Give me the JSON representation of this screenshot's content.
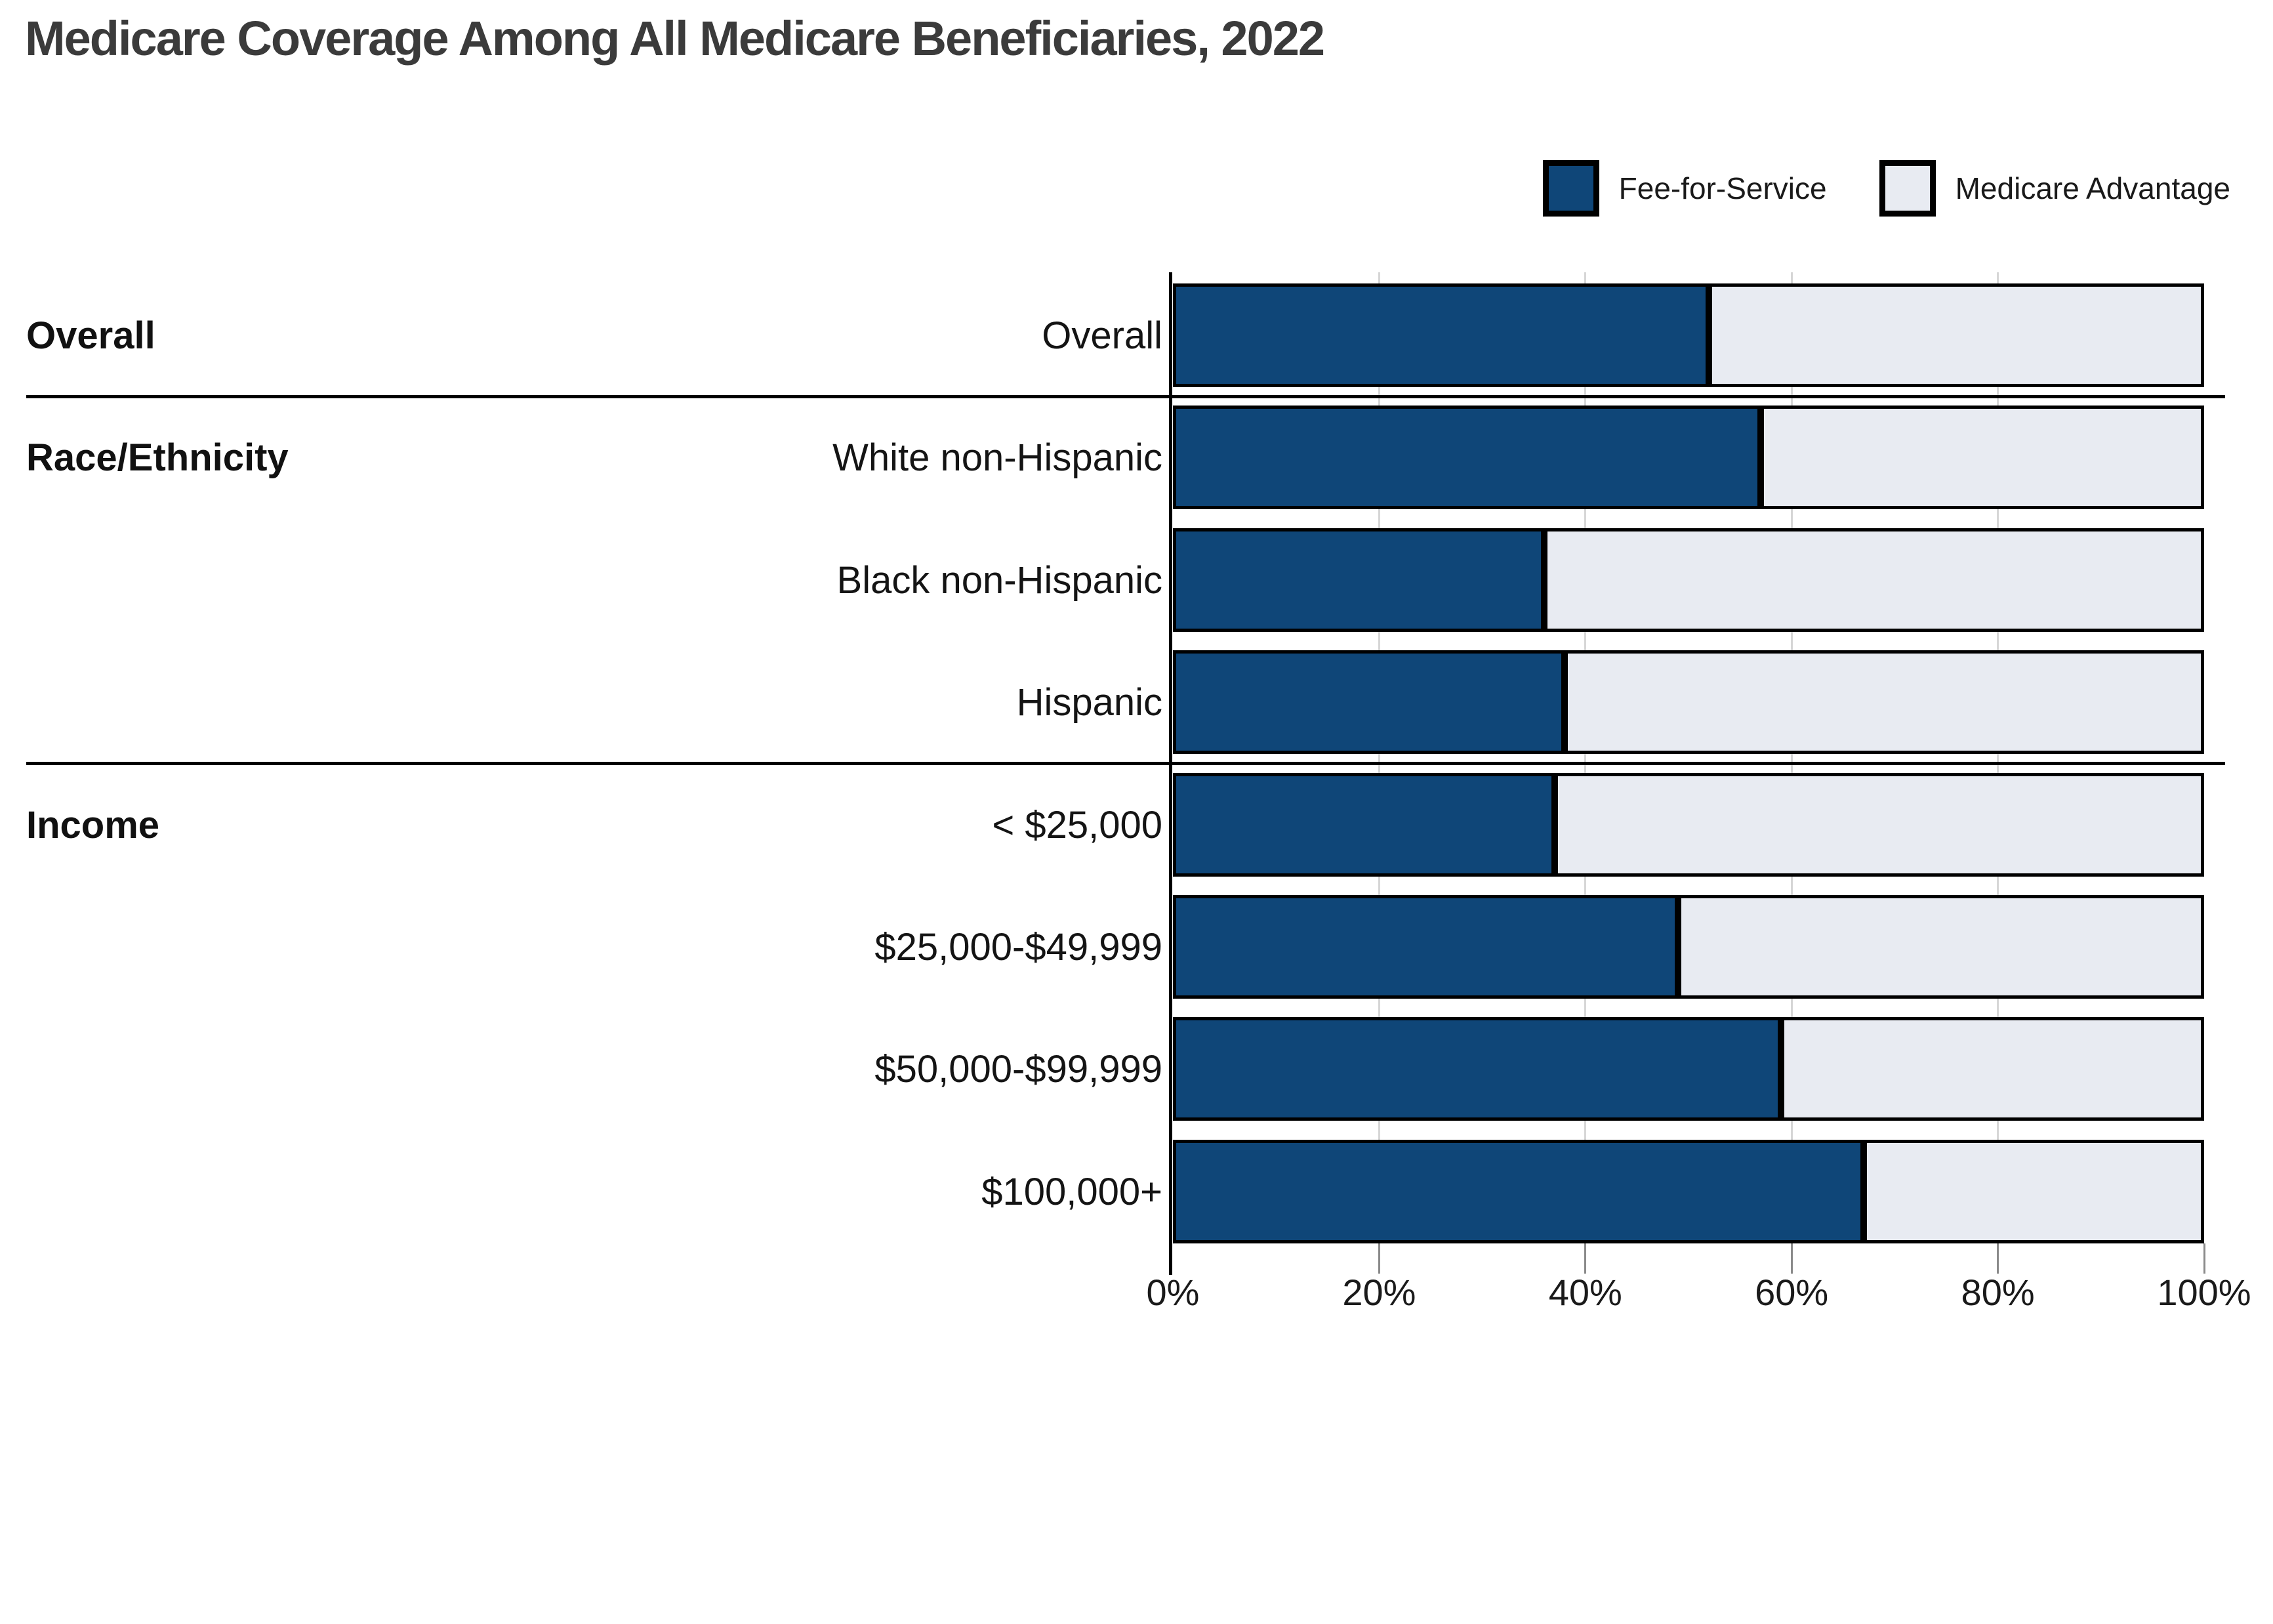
{
  "title": "Medicare Coverage Among All Medicare Beneficiaries, 2022",
  "legend": {
    "items": [
      {
        "label": "Fee-for-Service",
        "color": "#0F4678"
      },
      {
        "label": "Medicare Advantage",
        "color": "#E8EBF2"
      }
    ]
  },
  "chart_data": {
    "type": "bar",
    "orientation": "horizontal",
    "stacked": true,
    "unit": "percent",
    "xlim": [
      0,
      100
    ],
    "x_tick_values": [
      0,
      20,
      40,
      60,
      80,
      100
    ],
    "x_tick_labels": [
      "0%",
      "20%",
      "40%",
      "60%",
      "80%",
      "100%"
    ],
    "grid": true,
    "legend_position": "top-right",
    "series_names": [
      "Fee-for-Service",
      "Medicare Advantage"
    ],
    "groups": [
      {
        "label": "Overall",
        "rows": [
          {
            "label": "Overall",
            "fee_for_service": 52,
            "medicare_advantage": 48
          }
        ]
      },
      {
        "label": "Race/Ethnicity",
        "rows": [
          {
            "label": "White non-Hispanic",
            "fee_for_service": 57,
            "medicare_advantage": 43
          },
          {
            "label": "Black non-Hispanic",
            "fee_for_service": 36,
            "medicare_advantage": 64
          },
          {
            "label": "Hispanic",
            "fee_for_service": 38,
            "medicare_advantage": 62
          }
        ]
      },
      {
        "label": "Income",
        "rows": [
          {
            "label": "< $25,000",
            "fee_for_service": 37,
            "medicare_advantage": 63
          },
          {
            "label": "$25,000-$49,999",
            "fee_for_service": 49,
            "medicare_advantage": 51
          },
          {
            "label": "$50,000-$99,999",
            "fee_for_service": 59,
            "medicare_advantage": 41
          },
          {
            "label": "$100,000+",
            "fee_for_service": 67,
            "medicare_advantage": 33
          }
        ]
      }
    ],
    "colors": {
      "fee_for_service": "#0F4678",
      "medicare_advantage": "#E8EBF2",
      "bar_border": "#000000",
      "gridline": "#D6D6D6",
      "tick": "#8A8A8A",
      "separator": "#000000",
      "title_text": "#3B3B3B",
      "label_text": "#141414"
    }
  }
}
